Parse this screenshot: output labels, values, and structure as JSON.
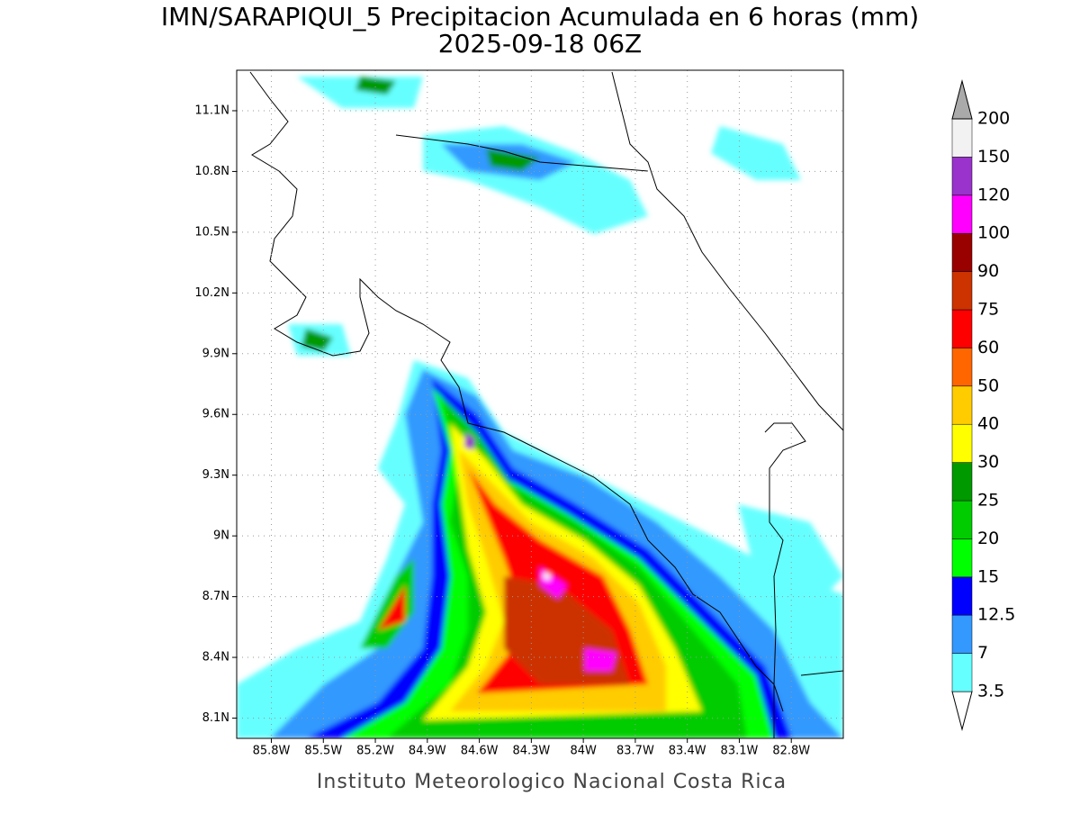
{
  "chart_data": {
    "type": "contour-map",
    "title": "IMN/SARAPIQUI_5 Precipitacion Acumulada en 6 horas (mm)",
    "subtitle": "2025-09-18 06Z",
    "footer": "Instituto Meteorologico Nacional Costa Rica",
    "xlim": [
      -86.0,
      -82.5
    ],
    "ylim": [
      8.0,
      11.3
    ],
    "xticks": [
      {
        "value": -85.8,
        "label": "85.8W"
      },
      {
        "value": -85.5,
        "label": "85.5W"
      },
      {
        "value": -85.2,
        "label": "85.2W"
      },
      {
        "value": -84.9,
        "label": "84.9W"
      },
      {
        "value": -84.6,
        "label": "84.6W"
      },
      {
        "value": -84.3,
        "label": "84.3W"
      },
      {
        "value": -84.0,
        "label": "84W"
      },
      {
        "value": -83.7,
        "label": "83.7W"
      },
      {
        "value": -83.4,
        "label": "83.4W"
      },
      {
        "value": -83.1,
        "label": "83.1W"
      },
      {
        "value": -82.8,
        "label": "82.8W"
      }
    ],
    "yticks": [
      {
        "value": 8.1,
        "label": "8.1N"
      },
      {
        "value": 8.4,
        "label": "8.4N"
      },
      {
        "value": 8.7,
        "label": "8.7N"
      },
      {
        "value": 9.0,
        "label": "9N"
      },
      {
        "value": 9.3,
        "label": "9.3N"
      },
      {
        "value": 9.6,
        "label": "9.6N"
      },
      {
        "value": 9.9,
        "label": "9.9N"
      },
      {
        "value": 10.2,
        "label": "10.2N"
      },
      {
        "value": 10.5,
        "label": "10.5N"
      },
      {
        "value": 10.8,
        "label": "10.8N"
      },
      {
        "value": 11.1,
        "label": "11.1N"
      }
    ],
    "grid": true,
    "colorbar": {
      "levels": [
        3.5,
        7,
        12.5,
        15,
        20,
        25,
        30,
        40,
        50,
        60,
        75,
        90,
        100,
        120,
        150,
        200
      ],
      "colors": [
        "#66ffff",
        "#3399ff",
        "#0000ff",
        "#00ff00",
        "#00cc00",
        "#009900",
        "#ffff00",
        "#ffcc00",
        "#ff6600",
        "#ff0000",
        "#cc3300",
        "#990000",
        "#ff00ff",
        "#9933cc",
        "#f2f2f2"
      ],
      "under_color": "#ffffff",
      "over_color": "#aaaaaa"
    }
  }
}
